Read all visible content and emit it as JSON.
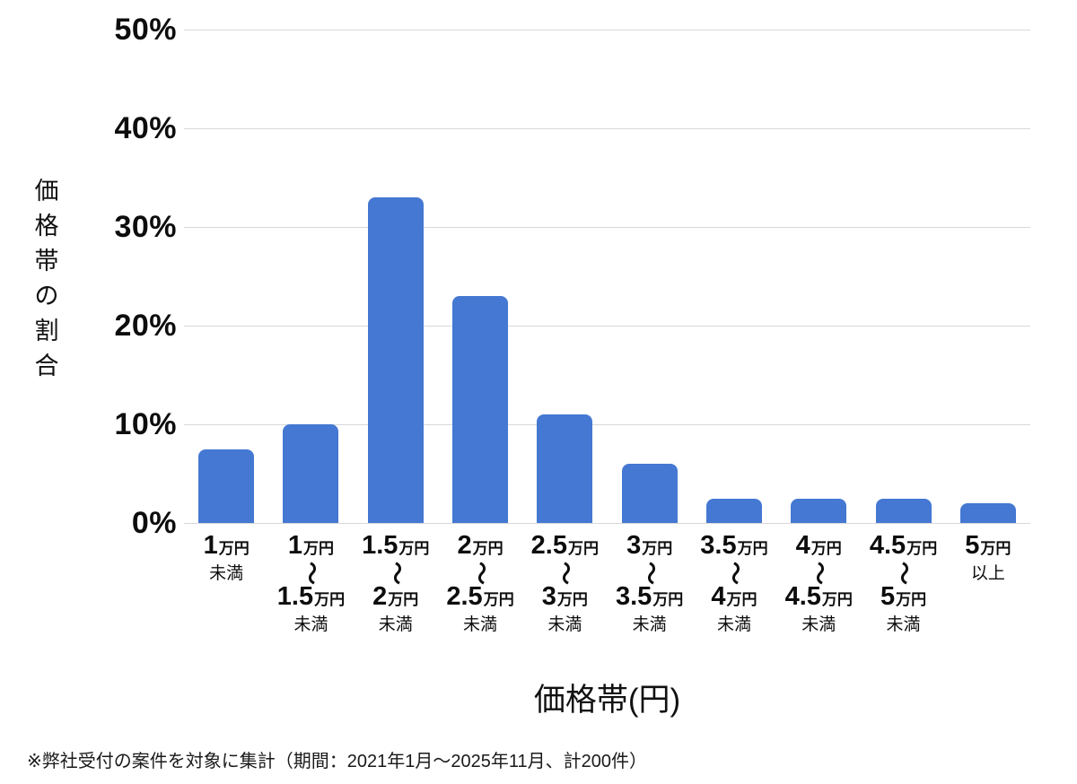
{
  "chart_data": {
    "type": "bar",
    "title": "",
    "xlabel": "価格帯(円)",
    "ylabel": "価格帯の割合",
    "ylim": [
      0,
      50
    ],
    "ytick_values": [
      0,
      10,
      20,
      30,
      40,
      50
    ],
    "ytick_labels": [
      "0%",
      "10%",
      "20%",
      "30%",
      "40%",
      "50%"
    ],
    "grid": true,
    "legend": "none",
    "bar_color": "#4478d2",
    "gridline_color": "#d8d8d8",
    "categories": [
      "1万円未満",
      "1万円〜1.5万円未満",
      "1.5万円〜2万円未満",
      "2万円〜2.5万円未満",
      "2.5万円〜3万円未満",
      "3万円〜3.5万円未満",
      "3.5万円〜4万円未満",
      "4万円〜4.5万円未満",
      "4.5万円〜5万円未満",
      "5万円以上"
    ],
    "category_parts": [
      {
        "from": "1",
        "unit": "万円",
        "to": null,
        "suffix": "未満"
      },
      {
        "from": "1",
        "unit": "万円",
        "to": "1.5",
        "suffix": "未満"
      },
      {
        "from": "1.5",
        "unit": "万円",
        "to": "2",
        "suffix": "未満"
      },
      {
        "from": "2",
        "unit": "万円",
        "to": "2.5",
        "suffix": "未満"
      },
      {
        "from": "2.5",
        "unit": "万円",
        "to": "3",
        "suffix": "未満"
      },
      {
        "from": "3",
        "unit": "万円",
        "to": "3.5",
        "suffix": "未満"
      },
      {
        "from": "3.5",
        "unit": "万円",
        "to": "4",
        "suffix": "未満"
      },
      {
        "from": "4",
        "unit": "万円",
        "to": "4.5",
        "suffix": "未満"
      },
      {
        "from": "4.5",
        "unit": "万円",
        "to": "5",
        "suffix": "未満"
      },
      {
        "from": "5",
        "unit": "万円",
        "to": null,
        "suffix": "以上"
      }
    ],
    "range_separator": "〜",
    "values": [
      7.5,
      10,
      33,
      23,
      11,
      6,
      2.5,
      2.5,
      2.5,
      2
    ]
  },
  "footnote": "※弊社受付の案件を対象に集計（期間：2021年1月～2025年11月、計200件）"
}
